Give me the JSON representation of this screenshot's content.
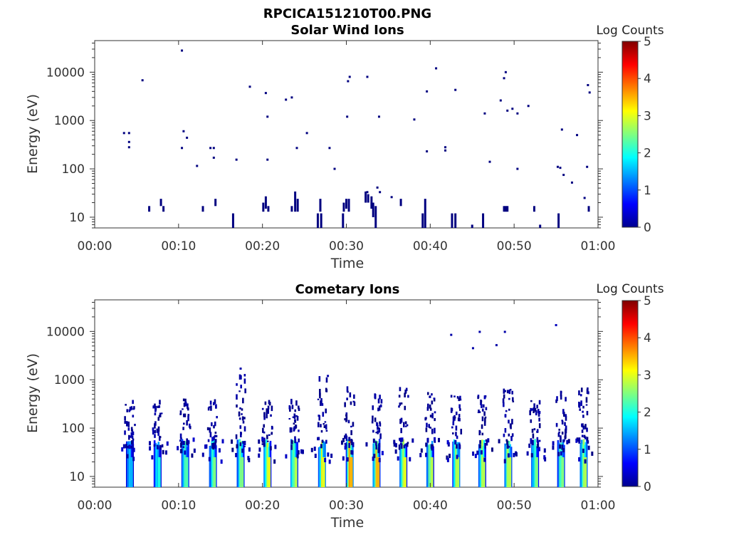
{
  "figure_title": "RPCICA151210T00.PNG",
  "colorbar": {
    "label": "Log Counts",
    "ticks": [
      "0",
      "1",
      "2",
      "3",
      "4",
      "5"
    ],
    "range": [
      0,
      5
    ],
    "colormap": "jet"
  },
  "chart_data": [
    {
      "type": "heatmap",
      "title": "Solar Wind Ions",
      "xlabel": "Time",
      "ylabel": "Energy (eV)",
      "x_ticks": [
        "00:00",
        "00:10",
        "00:20",
        "00:30",
        "00:40",
        "00:50",
        "01:00"
      ],
      "xlim_minutes": [
        0,
        60
      ],
      "y_ticks": [
        "10",
        "100",
        "1000",
        "10000"
      ],
      "ylim": [
        6,
        45000
      ],
      "y_scale": "log",
      "points": [
        [
          3.5,
          550,
          0
        ],
        [
          4.1,
          550,
          0
        ],
        [
          4.1,
          360,
          0
        ],
        [
          4.1,
          280,
          0
        ],
        [
          5.7,
          6800,
          0
        ],
        [
          10.4,
          28000,
          0
        ],
        [
          10.4,
          270,
          0
        ],
        [
          10.6,
          600,
          0
        ],
        [
          11.0,
          440,
          0
        ],
        [
          12.2,
          115,
          0
        ],
        [
          13.8,
          270,
          0
        ],
        [
          14.2,
          270,
          0
        ],
        [
          14.2,
          170,
          0
        ],
        [
          16.9,
          155,
          0
        ],
        [
          18.5,
          5000,
          0
        ],
        [
          20.4,
          3700,
          0
        ],
        [
          20.6,
          1200,
          0
        ],
        [
          20.6,
          155,
          0
        ],
        [
          22.8,
          2700,
          0
        ],
        [
          23.5,
          3000,
          0
        ],
        [
          24.1,
          270,
          0
        ],
        [
          25.3,
          550,
          0
        ],
        [
          28.0,
          270,
          0
        ],
        [
          28.6,
          100,
          0
        ],
        [
          30.2,
          6500,
          0
        ],
        [
          30.4,
          8000,
          0
        ],
        [
          30.1,
          1200,
          0
        ],
        [
          32.5,
          8000,
          0
        ],
        [
          33.9,
          1200,
          0
        ],
        [
          38.1,
          1050,
          0
        ],
        [
          39.6,
          4000,
          0
        ],
        [
          39.6,
          230,
          0
        ],
        [
          40.7,
          12000,
          0
        ],
        [
          41.8,
          280,
          0
        ],
        [
          41.8,
          240,
          0
        ],
        [
          43.0,
          4300,
          0
        ],
        [
          46.5,
          1400,
          0
        ],
        [
          47.1,
          140,
          0
        ],
        [
          48.4,
          2600,
          0
        ],
        [
          48.8,
          7500,
          0
        ],
        [
          49.0,
          10000,
          0
        ],
        [
          49.2,
          1600,
          0
        ],
        [
          49.8,
          1750,
          0
        ],
        [
          50.4,
          1400,
          0
        ],
        [
          50.4,
          100,
          0
        ],
        [
          51.7,
          2000,
          0
        ],
        [
          55.2,
          110,
          0
        ],
        [
          55.5,
          105,
          0
        ],
        [
          55.7,
          650,
          0
        ],
        [
          55.9,
          75,
          0
        ],
        [
          56.9,
          52,
          0
        ],
        [
          57.5,
          500,
          0
        ],
        [
          58.4,
          25,
          0
        ],
        [
          58.7,
          110,
          0
        ],
        [
          58.8,
          5400,
          0
        ],
        [
          59.0,
          3800,
          0
        ],
        [
          32.5,
          33,
          0
        ],
        [
          33.7,
          41,
          0
        ],
        [
          34.0,
          33,
          0
        ],
        [
          35.4,
          26,
          0
        ]
      ],
      "columns": [
        [
          6.5,
          13,
          17,
          0
        ],
        [
          7.9,
          17,
          24,
          0
        ],
        [
          8.2,
          13,
          17,
          0
        ],
        [
          12.9,
          13,
          17,
          0
        ],
        [
          14.4,
          17,
          24,
          0
        ],
        [
          16.5,
          6,
          12,
          0
        ],
        [
          20.1,
          13,
          20,
          0
        ],
        [
          20.4,
          15,
          27,
          0
        ],
        [
          20.7,
          13,
          17,
          0
        ],
        [
          23.5,
          13,
          17,
          0
        ],
        [
          23.9,
          13,
          34,
          0
        ],
        [
          24.2,
          13,
          24,
          0
        ],
        [
          26.9,
          13,
          24,
          0
        ],
        [
          26.6,
          6,
          12,
          0
        ],
        [
          27.0,
          6,
          12,
          0
        ],
        [
          29.7,
          13,
          20,
          0
        ],
        [
          30.0,
          15,
          24,
          0
        ],
        [
          30.3,
          13,
          24,
          0
        ],
        [
          29.6,
          6,
          12,
          0
        ],
        [
          32.3,
          20,
          34,
          0
        ],
        [
          32.6,
          20,
          30,
          0
        ],
        [
          33.0,
          15,
          27,
          0
        ],
        [
          33.2,
          10,
          20,
          0
        ],
        [
          33.5,
          6,
          17,
          0
        ],
        [
          36.5,
          17,
          24,
          0
        ],
        [
          39.1,
          6,
          12,
          0
        ],
        [
          39.4,
          6,
          24,
          0
        ],
        [
          42.6,
          6,
          12,
          0
        ],
        [
          43.0,
          6,
          12,
          0
        ],
        [
          45.0,
          6,
          7,
          0
        ],
        [
          46.3,
          6,
          12,
          0
        ],
        [
          48.8,
          13,
          17,
          0
        ],
        [
          49.0,
          13,
          17,
          0
        ],
        [
          49.2,
          13,
          17,
          0
        ],
        [
          52.4,
          13,
          17,
          0
        ],
        [
          55.3,
          6,
          12,
          0
        ],
        [
          58.9,
          13,
          17,
          0
        ],
        [
          53.1,
          6,
          7,
          0
        ]
      ]
    },
    {
      "type": "heatmap",
      "title": "Cometary Ions",
      "xlabel": "Time",
      "ylabel": "Energy (eV)",
      "x_ticks": [
        "00:00",
        "00:10",
        "00:20",
        "00:30",
        "00:40",
        "00:50",
        "01:00"
      ],
      "xlim_minutes": [
        0,
        60
      ],
      "y_ticks": [
        "10",
        "100",
        "1000",
        "10000"
      ],
      "ylim": [
        6,
        45000
      ],
      "y_scale": "log",
      "bursts": [
        [
          4.2,
          350,
          0.2
        ],
        [
          7.5,
          350,
          0.3
        ],
        [
          10.8,
          420,
          0.35
        ],
        [
          14.1,
          420,
          0.4
        ],
        [
          17.4,
          1700,
          0.4
        ],
        [
          20.6,
          420,
          0.5
        ],
        [
          23.8,
          380,
          0.45
        ],
        [
          27.1,
          1200,
          0.5
        ],
        [
          30.4,
          650,
          0.6
        ],
        [
          33.6,
          600,
          0.6
        ],
        [
          36.8,
          650,
          0.5
        ],
        [
          40.0,
          600,
          0.45
        ],
        [
          43.1,
          650,
          0.45
        ],
        [
          46.2,
          650,
          0.45
        ],
        [
          49.3,
          650,
          0.45
        ],
        [
          52.5,
          380,
          0.4
        ],
        [
          55.6,
          600,
          0.4
        ],
        [
          58.3,
          700,
          0.45
        ]
      ],
      "points": [
        [
          42.5,
          8500,
          0.2
        ],
        [
          45.1,
          4500,
          0.2
        ],
        [
          45.9,
          9800,
          0.2
        ],
        [
          47.9,
          5200,
          0.2
        ],
        [
          48.9,
          9800,
          0.2
        ],
        [
          55.0,
          13500,
          0.3
        ],
        [
          17.4,
          1700,
          0.2
        ],
        [
          27.8,
          1200,
          0.2
        ]
      ]
    }
  ]
}
